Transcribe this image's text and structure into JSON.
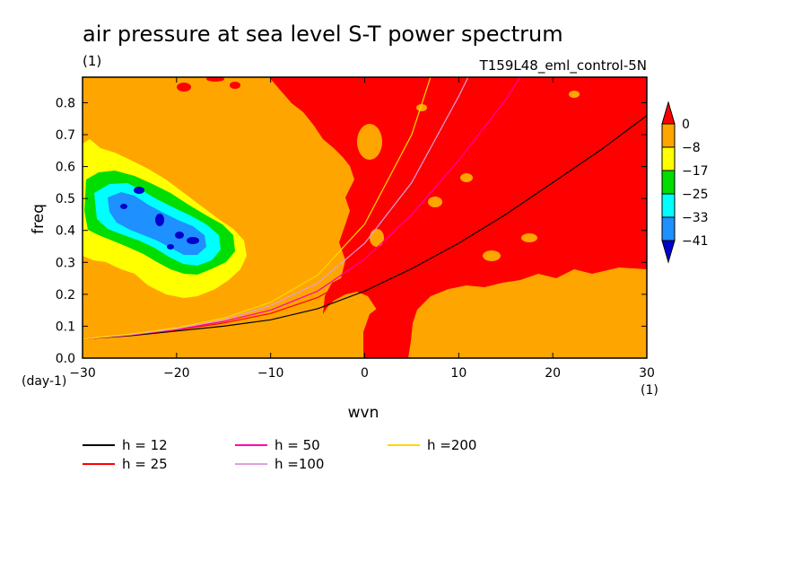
{
  "chart_data": {
    "type": "heatmap",
    "title": "air pressure at sea level S-T power spectrum",
    "subtitle_left": "(1)",
    "subtitle_right": "T159L48_eml_control-5N",
    "xlabel": "wvn",
    "ylabel": "freq",
    "x_unit": "(1)",
    "y_unit": "(day-1)",
    "xlim": [
      -30,
      30
    ],
    "ylim": [
      0,
      0.88
    ],
    "x_ticks": [
      -30,
      -20,
      -10,
      0,
      10,
      20,
      30
    ],
    "x_tick_labels": [
      "−30",
      "−20",
      "−10",
      "0",
      "10",
      "20",
      "30"
    ],
    "y_ticks": [
      0,
      0.1,
      0.2,
      0.3,
      0.4,
      0.5,
      0.6,
      0.7,
      0.8
    ],
    "y_tick_labels": [
      "0.0",
      "0.1",
      "0.2",
      "0.3",
      "0.4",
      "0.5",
      "0.6",
      "0.7",
      "0.8"
    ],
    "colorbar": {
      "levels": [
        "0",
        "−8",
        "−17",
        "−25",
        "−33",
        "−41"
      ],
      "colors": [
        "#ff0000",
        "#ffa500",
        "#ffff00",
        "#00dd00",
        "#00ffff",
        "#1e90ff",
        "#0000cc"
      ]
    },
    "regions": {
      "background_orange": "#ffa500",
      "red": "#ff0000",
      "low_power_blob_center": [
        -20,
        0.42
      ]
    },
    "series": [
      {
        "name": "h = 12",
        "color": "#000000",
        "x": [
          -30,
          -25,
          -20,
          -15,
          -10,
          -5,
          0,
          5,
          10,
          15,
          20,
          25,
          30
        ],
        "y": [
          0.06,
          0.07,
          0.085,
          0.1,
          0.12,
          0.155,
          0.21,
          0.28,
          0.36,
          0.45,
          0.55,
          0.65,
          0.76
        ]
      },
      {
        "name": "h = 25",
        "color": "#ff0000",
        "x": [
          -30,
          -25,
          -20,
          -15,
          -10,
          -5,
          0,
          5,
          10
        ],
        "y": [
          0.06,
          0.072,
          0.088,
          0.11,
          0.14,
          0.19,
          0.27,
          0.38,
          0.52
        ]
      },
      {
        "name": "h = 50",
        "color": "#ff00aa",
        "x": [
          -30,
          -25,
          -20,
          -15,
          -10,
          -5,
          0,
          5,
          10,
          15,
          16.5
        ],
        "y": [
          0.06,
          0.072,
          0.09,
          0.115,
          0.15,
          0.21,
          0.31,
          0.45,
          0.62,
          0.81,
          0.88
        ]
      },
      {
        "name": "h =100",
        "color": "#dda0dd",
        "x": [
          -30,
          -25,
          -20,
          -15,
          -10,
          -5,
          0,
          5,
          10,
          11
        ],
        "y": [
          0.06,
          0.073,
          0.092,
          0.12,
          0.165,
          0.235,
          0.36,
          0.55,
          0.82,
          0.88
        ]
      },
      {
        "name": "h =200",
        "color": "#ffd700",
        "x": [
          -30,
          -25,
          -20,
          -15,
          -10,
          -5,
          0,
          5,
          7
        ],
        "y": [
          0.06,
          0.075,
          0.095,
          0.125,
          0.175,
          0.26,
          0.42,
          0.7,
          0.88
        ]
      }
    ]
  }
}
